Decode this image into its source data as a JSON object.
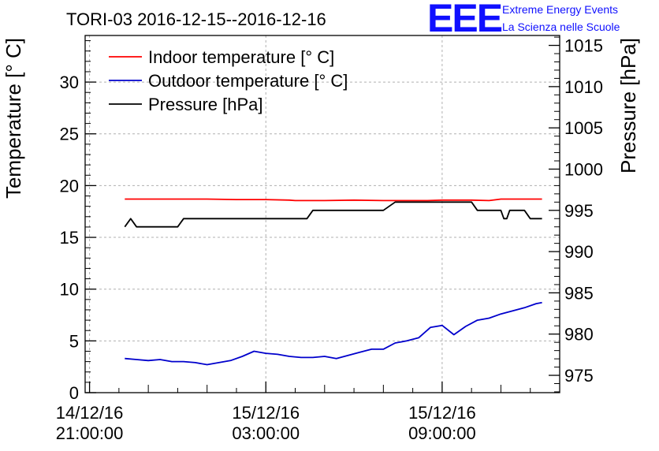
{
  "logo": {
    "mark": "EEE",
    "line1": "Extreme Energy Events",
    "line2": "La Scienza nelle Scuole",
    "color": "#1010ff"
  },
  "chart_data": {
    "type": "line",
    "title": "TORI-03 2016-12-15--2016-12-16",
    "xlabel": "",
    "ylabel": "Temperature [° C]",
    "y2label": "Pressure [hPa]",
    "ylim": [
      0,
      34.5
    ],
    "y2lim": [
      972.9,
      1016.2
    ],
    "y_ticks": [
      0,
      5,
      10,
      15,
      20,
      25,
      30
    ],
    "y2_ticks": [
      975,
      980,
      985,
      990,
      995,
      1000,
      1005,
      1010,
      1015
    ],
    "x_ticks": [
      {
        "hour": 0,
        "date": "14/12/16",
        "time": "21:00:00"
      },
      {
        "hour": 6,
        "date": "15/12/16",
        "time": "03:00:00"
      },
      {
        "hour": 12,
        "date": "15/12/16",
        "time": "09:00:00"
      }
    ],
    "xlim_hours": [
      -0.15,
      16
    ],
    "grid": true,
    "legend_position": "top-left",
    "series": [
      {
        "name": "Indoor temperature [° C]",
        "axis": "left",
        "color": "#ff0000",
        "x": [
          1.2,
          2,
          3,
          4,
          5,
          6,
          6.8,
          7,
          8,
          9,
          10,
          11,
          11.5,
          12,
          13,
          13.6,
          14,
          15,
          15.4
        ],
        "values": [
          18.7,
          18.7,
          18.7,
          18.7,
          18.65,
          18.65,
          18.6,
          18.55,
          18.55,
          18.6,
          18.55,
          18.55,
          18.55,
          18.6,
          18.6,
          18.55,
          18.7,
          18.7,
          18.7
        ]
      },
      {
        "name": "Outdoor temperature [° C]",
        "axis": "left",
        "color": "#0000cc",
        "x": [
          1.2,
          1.6,
          2,
          2.4,
          2.8,
          3.2,
          3.6,
          4,
          4.4,
          4.8,
          5.2,
          5.6,
          6,
          6.4,
          6.8,
          7.2,
          7.6,
          8,
          8.4,
          8.8,
          9.2,
          9.6,
          10,
          10.4,
          10.8,
          11.2,
          11.6,
          12,
          12.4,
          12.8,
          13.2,
          13.6,
          14,
          14.4,
          14.8,
          15.2,
          15.4
        ],
        "values": [
          3.3,
          3.2,
          3.1,
          3.2,
          3.0,
          3.0,
          2.9,
          2.7,
          2.9,
          3.1,
          3.5,
          4.0,
          3.8,
          3.7,
          3.5,
          3.4,
          3.4,
          3.5,
          3.3,
          3.6,
          3.9,
          4.2,
          4.2,
          4.8,
          5.0,
          5.3,
          6.3,
          6.5,
          5.6,
          6.4,
          7.0,
          7.2,
          7.6,
          7.9,
          8.2,
          8.6,
          8.7
        ]
      },
      {
        "name": "Pressure [hPa]",
        "axis": "right",
        "color": "#000000",
        "x": [
          1.2,
          1.4,
          1.6,
          2,
          3,
          3.2,
          3.4,
          4,
          5,
          6,
          7,
          7.4,
          7.6,
          8,
          9,
          10,
          10.4,
          10.6,
          11,
          12,
          13,
          13.2,
          13.4,
          14,
          14.1,
          14.2,
          14.3,
          14.6,
          14.8,
          15,
          15.4
        ],
        "values": [
          993,
          994,
          993,
          993,
          993,
          994,
          994,
          994,
          994,
          994,
          994,
          994,
          995,
          995,
          995,
          995,
          996,
          996,
          996,
          996,
          996,
          995,
          995,
          995,
          994,
          994,
          995,
          995,
          995,
          994,
          994
        ]
      }
    ]
  }
}
